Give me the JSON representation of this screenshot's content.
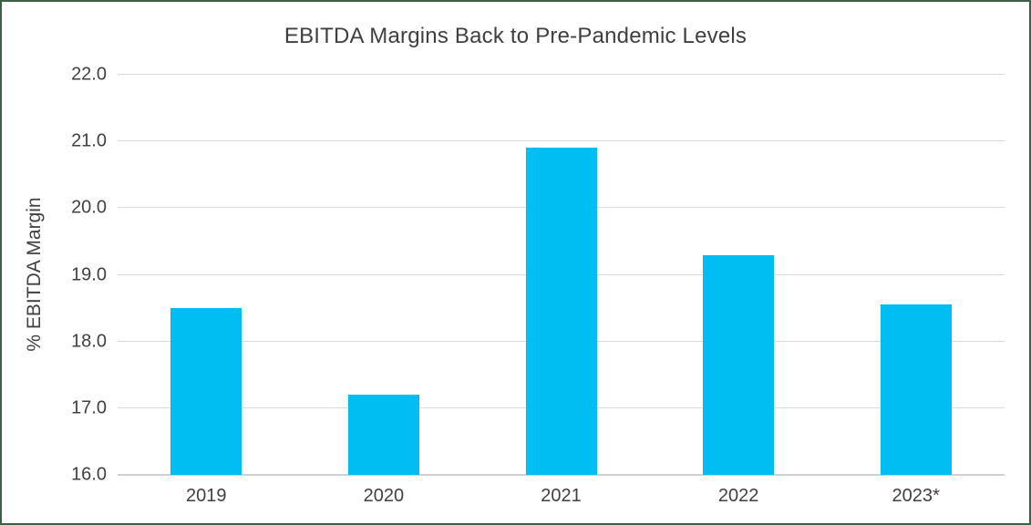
{
  "frame": {
    "background": "#ffffff",
    "border_color": "#3d5f43"
  },
  "chart_data": {
    "type": "bar",
    "title": "EBITDA Margins Back to Pre-Pandemic Levels",
    "xlabel": "",
    "ylabel": "% EBITDA Margin",
    "categories": [
      "2019",
      "2020",
      "2021",
      "2022",
      "2023*"
    ],
    "values": [
      18.5,
      17.2,
      20.9,
      19.3,
      18.55
    ],
    "ylim": [
      16.0,
      22.0
    ],
    "ytick_step": 1.0,
    "ytick_labels": [
      "16.0",
      "17.0",
      "18.0",
      "19.0",
      "20.0",
      "21.0",
      "22.0"
    ],
    "grid": "horizontal",
    "legend": "none",
    "bar_color": "#00BEF2",
    "gridline_color": "#dadada",
    "axis_line_color": "#d0d0d0",
    "text_color": "#404040"
  }
}
